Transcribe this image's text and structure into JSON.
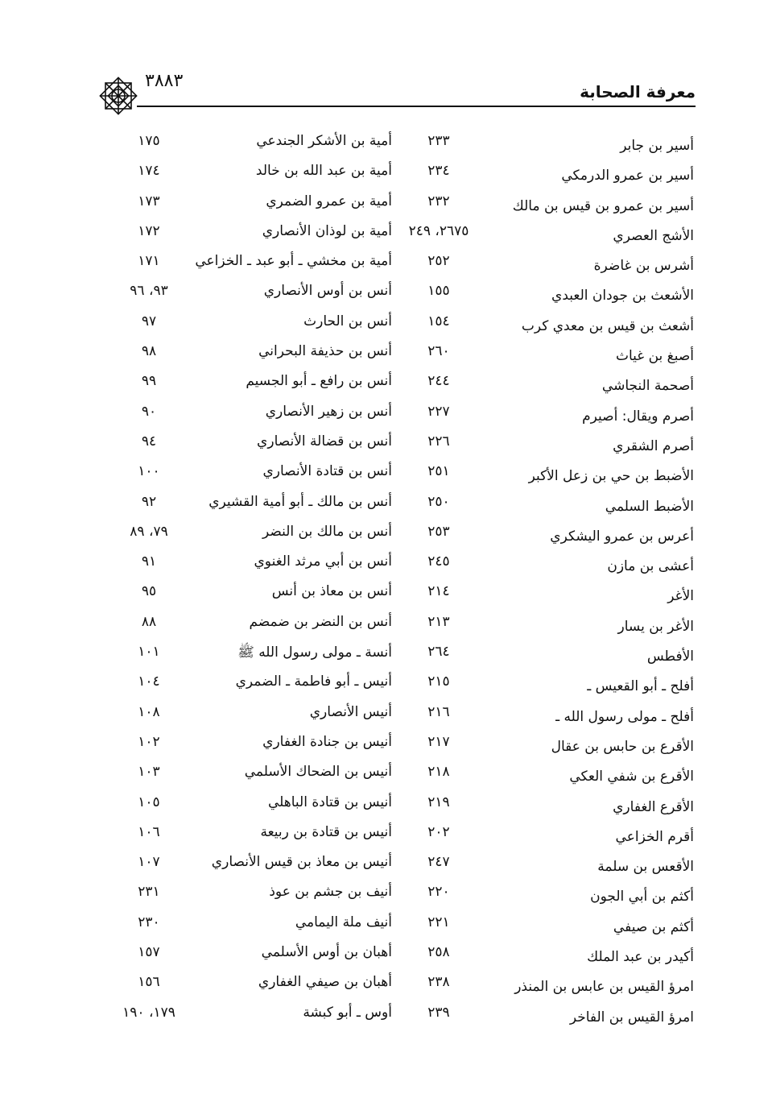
{
  "header": {
    "title": "معرفة الصحابة",
    "page_number": "٣٨٨٣",
    "ornament_icon": "octagram-ornament"
  },
  "rows": [
    {
      "name1": "أسير بن جابر",
      "page1": "٢٣٣",
      "name2": "أمية بن الأشكر الجندعي",
      "page2": "١٧٥"
    },
    {
      "name1": "أسير بن عمرو الدرمكي",
      "page1": "٢٣٤",
      "name2": "أمية بن عبد الله بن خالد",
      "page2": "١٧٤"
    },
    {
      "name1": "أسير بن عمرو بن قيس بن مالك",
      "page1": "٢٣٢",
      "name2": "أمية بن عمرو الضمري",
      "page2": "١٧٣"
    },
    {
      "name1": "الأشج العصري",
      "page1": "٢٦٧٥، ٢٤٩",
      "name2": "أمية بن لوذان الأنصاري",
      "page2": "١٧٢"
    },
    {
      "name1": "أشرس بن غاضرة",
      "page1": "٢٥٢",
      "name2": "أمية بن مخشي ـ أبو عبد ـ الخزاعي",
      "page2": "١٧١"
    },
    {
      "name1": "الأشعث بن جودان العبدي",
      "page1": "١٥٥",
      "name2": "أنس بن أوس الأنصاري",
      "page2": "٩٣، ٩٦"
    },
    {
      "name1": "أشعث بن قيس بن معدي كرب",
      "page1": "١٥٤",
      "name2": "أنس بن الحارث",
      "page2": "٩٧"
    },
    {
      "name1": "أصبغ بن غياث",
      "page1": "٢٦٠",
      "name2": "أنس بن حذيفة البحراني",
      "page2": "٩٨"
    },
    {
      "name1": "أصحمة النجاشي",
      "page1": "٢٤٤",
      "name2": "أنس بن رافع ـ أبو الجسيم",
      "page2": "٩٩"
    },
    {
      "name1": "أصرم ويقال: أصيرم",
      "page1": "٢٢٧",
      "name2": "أنس بن زهير الأنصاري",
      "page2": "٩٠"
    },
    {
      "name1": "أصرم الشقري",
      "page1": "٢٢٦",
      "name2": "أنس بن قضالة الأنصاري",
      "page2": "٩٤"
    },
    {
      "name1": "الأضبط بن حي بن زعل الأكبر",
      "page1": "٢٥١",
      "name2": "أنس بن قتادة الأنصاري",
      "page2": "١٠٠"
    },
    {
      "name1": "الأضبط السلمي",
      "page1": "٢٥٠",
      "name2": "أنس بن مالك ـ أبو أمية القشيري",
      "page2": "٩٢"
    },
    {
      "name1": "أعرس بن عمرو اليشكري",
      "page1": "٢٥٣",
      "name2": "أنس بن مالك بن النضر",
      "page2": "٧٩، ٨٩"
    },
    {
      "name1": "أعشى بن مازن",
      "page1": "٢٤٥",
      "name2": "أنس بن أبي مرثد الغنوي",
      "page2": "٩١"
    },
    {
      "name1": "الأغر",
      "page1": "٢١٤",
      "name2": "أنس بن معاذ بن أنس",
      "page2": "٩٥"
    },
    {
      "name1": "الأغر بن يسار",
      "page1": "٢١٣",
      "name2": "أنس بن النضر بن ضمضم",
      "page2": "٨٨"
    },
    {
      "name1": "الأفطس",
      "page1": "٢٦٤",
      "name2": "أنسة ـ مولى رسول الله ﷺ",
      "page2": "١٠١"
    },
    {
      "name1": "أفلح ـ أبو القعيس ـ",
      "page1": "٢١٥",
      "name2": "أنيس ـ أبو فاطمة ـ الضمري",
      "page2": "١٠٤"
    },
    {
      "name1": "أفلح ـ مولى رسول الله ـ",
      "page1": "٢١٦",
      "name2": "أنيس الأنصاري",
      "page2": "١٠٨"
    },
    {
      "name1": "الأقرع بن حابس بن عقال",
      "page1": "٢١٧",
      "name2": "أنيس بن جنادة الغفاري",
      "page2": "١٠٢"
    },
    {
      "name1": "الأقرع بن شفي العكي",
      "page1": "٢١٨",
      "name2": "أنيس بن الضحاك الأسلمي",
      "page2": "١٠٣"
    },
    {
      "name1": "الأقرع الغفاري",
      "page1": "٢١٩",
      "name2": "أنيس بن قتادة الباهلي",
      "page2": "١٠٥"
    },
    {
      "name1": "أقرم الخزاعي",
      "page1": "٢٠٢",
      "name2": "أنيس بن قتادة بن ربيعة",
      "page2": "١٠٦"
    },
    {
      "name1": "الأقعس بن سلمة",
      "page1": "٢٤٧",
      "name2": "أنيس بن معاذ بن قيس الأنصاري",
      "page2": "١٠٧"
    },
    {
      "name1": "أكثم بن أبي الجون",
      "page1": "٢٢٠",
      "name2": "أنيف بن جشم بن عوذ",
      "page2": "٢٣١"
    },
    {
      "name1": "أكثم بن صيفي",
      "page1": "٢٢١",
      "name2": "أنيف ملة اليمامي",
      "page2": "٢٣٠"
    },
    {
      "name1": "أكيدر بن عبد الملك",
      "page1": "٢٥٨",
      "name2": "أهبان بن أوس الأسلمي",
      "page2": "١٥٧"
    },
    {
      "name1": "امرؤ القيس بن عابس بن المنذر",
      "page1": "٢٣٨",
      "name2": "أهبان بن صيفي الغفاري",
      "page2": "١٥٦"
    },
    {
      "name1": "امرؤ القيس بن الفاخر",
      "page1": "٢٣٩",
      "name2": "أوس ـ أبو كبشة",
      "page2": "١٧٩، ١٩٠"
    }
  ]
}
